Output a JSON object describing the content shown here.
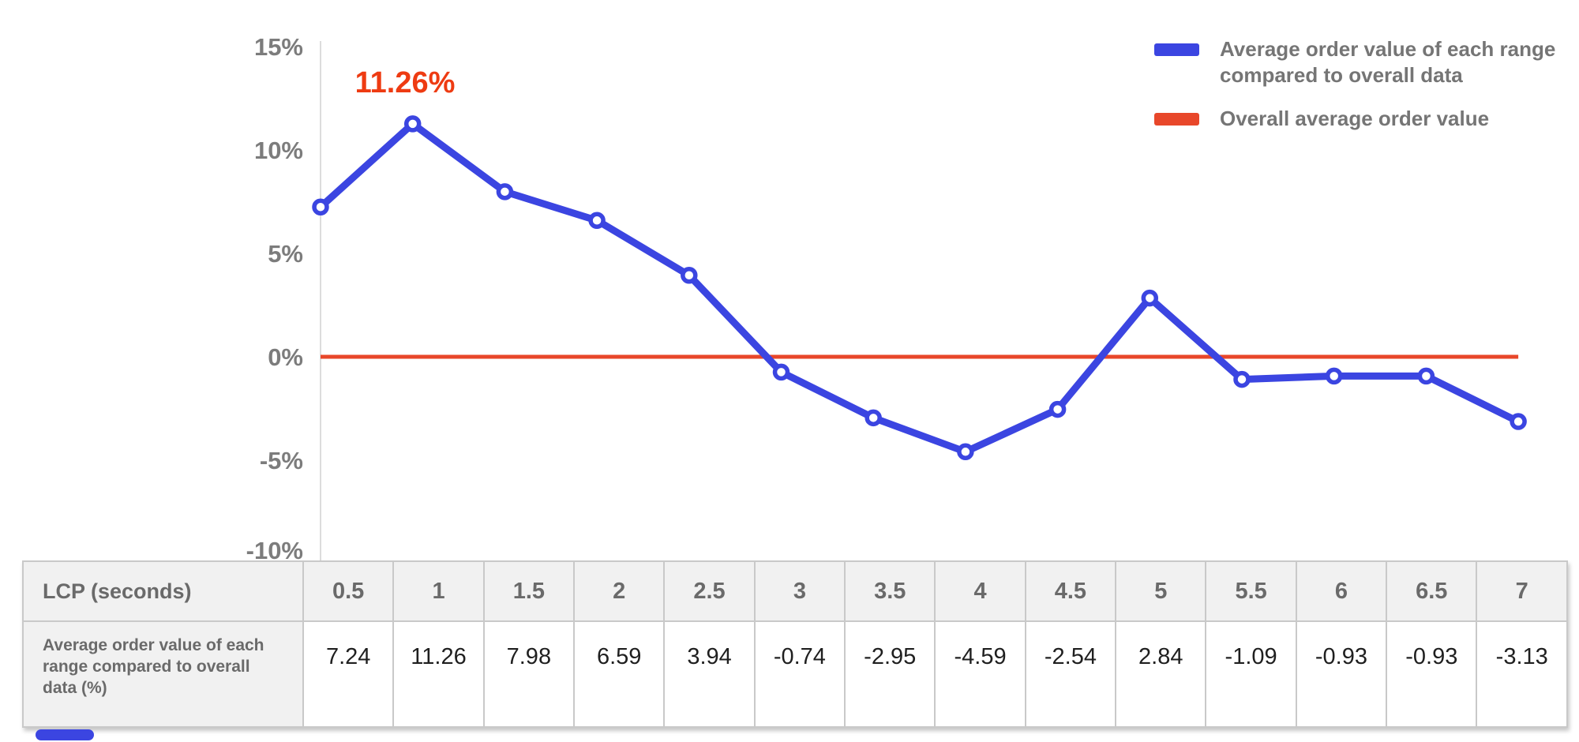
{
  "colors": {
    "accent_blue": "#3b45e1",
    "accent_red": "#e8472a",
    "annotation_red": "#ee3b12",
    "text_gray": "#757575",
    "axis_gray": "#dcdcdc",
    "value_text": "#1f1f1f"
  },
  "legend": {
    "items": [
      {
        "label": "Average order value of each range compared to overall data"
      },
      {
        "label": "Overall average order value"
      }
    ]
  },
  "chart_data": {
    "type": "line",
    "x": [
      0.5,
      1,
      1.5,
      2,
      2.5,
      3,
      3.5,
      4,
      4.5,
      5,
      5.5,
      6,
      6.5,
      7
    ],
    "series": [
      {
        "name": "Average order value of each range compared to overall data",
        "color": "#3b45e1",
        "marker": "circle",
        "values": [
          7.24,
          11.26,
          7.98,
          6.59,
          3.94,
          -0.74,
          -2.95,
          -4.59,
          -2.54,
          2.84,
          -1.09,
          -0.93,
          -0.93,
          -3.13
        ]
      },
      {
        "name": "Overall average order value",
        "color": "#e8472a",
        "constant_value": 0
      }
    ],
    "annotation": {
      "text": "11.26%",
      "at_x": 1,
      "at_y": 11.26,
      "color": "#ee3b12"
    },
    "yticks": [
      {
        "label": "15%",
        "value": 15
      },
      {
        "label": "10%",
        "value": 10
      },
      {
        "label": "5%",
        "value": 5
      },
      {
        "label": "0%",
        "value": 0
      },
      {
        "label": "-5%",
        "value": -5
      },
      {
        "label": "-10%",
        "value": -10
      }
    ],
    "ylim": [
      -11,
      15.5
    ],
    "xlabel": "LCP (seconds)",
    "ylabel": "",
    "grid": false,
    "legend_position": "top-right"
  },
  "table": {
    "header_label": "LCP (seconds)",
    "header_values": [
      "0.5",
      "1",
      "1.5",
      "2",
      "2.5",
      "3",
      "3.5",
      "4",
      "4.5",
      "5",
      "5.5",
      "6",
      "6.5",
      "7"
    ],
    "row_label": "Average order value of each range compared to overall data (%)",
    "row_values": [
      "7.24",
      "11.26",
      "7.98",
      "6.59",
      "3.94",
      "-0.74",
      "-2.95",
      "-4.59",
      "-2.54",
      "2.84",
      "-1.09",
      "-0.93",
      "-0.93",
      "-3.13"
    ]
  }
}
